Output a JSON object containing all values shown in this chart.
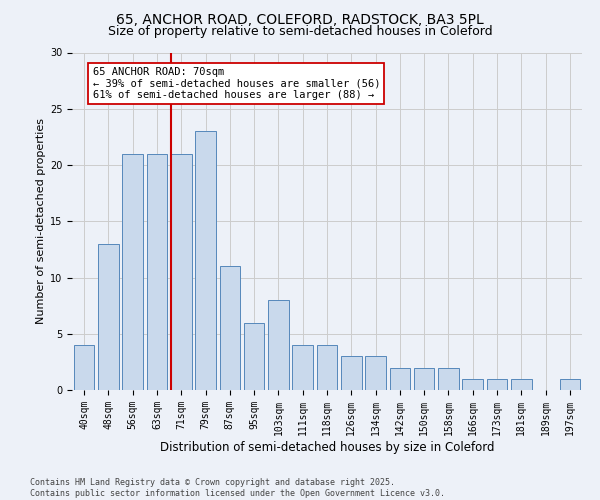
{
  "title_line1": "65, ANCHOR ROAD, COLEFORD, RADSTOCK, BA3 5PL",
  "title_line2": "Size of property relative to semi-detached houses in Coleford",
  "xlabel": "Distribution of semi-detached houses by size in Coleford",
  "ylabel": "Number of semi-detached properties",
  "categories": [
    "40sqm",
    "48sqm",
    "56sqm",
    "63sqm",
    "71sqm",
    "79sqm",
    "87sqm",
    "95sqm",
    "103sqm",
    "111sqm",
    "118sqm",
    "126sqm",
    "134sqm",
    "142sqm",
    "150sqm",
    "158sqm",
    "166sqm",
    "173sqm",
    "181sqm",
    "189sqm",
    "197sqm"
  ],
  "values": [
    4,
    13,
    21,
    21,
    21,
    23,
    11,
    6,
    8,
    4,
    4,
    3,
    3,
    2,
    2,
    2,
    1,
    1,
    1,
    0,
    1
  ],
  "bar_color": "#c9d9ec",
  "bar_edge_color": "#5588bb",
  "vline_color": "#cc0000",
  "annotation_text": "65 ANCHOR ROAD: 70sqm\n← 39% of semi-detached houses are smaller (56)\n61% of semi-detached houses are larger (88) →",
  "annotation_facecolor": "white",
  "annotation_edgecolor": "#cc0000",
  "grid_color": "#cccccc",
  "bg_color": "#edf1f8",
  "ylim": [
    0,
    30
  ],
  "yticks": [
    0,
    5,
    10,
    15,
    20,
    25,
    30
  ],
  "footer_text": "Contains HM Land Registry data © Crown copyright and database right 2025.\nContains public sector information licensed under the Open Government Licence v3.0.",
  "title1_fontsize": 10,
  "title2_fontsize": 9,
  "xlabel_fontsize": 8.5,
  "ylabel_fontsize": 8,
  "tick_fontsize": 7,
  "annot_fontsize": 7.5,
  "footer_fontsize": 6
}
